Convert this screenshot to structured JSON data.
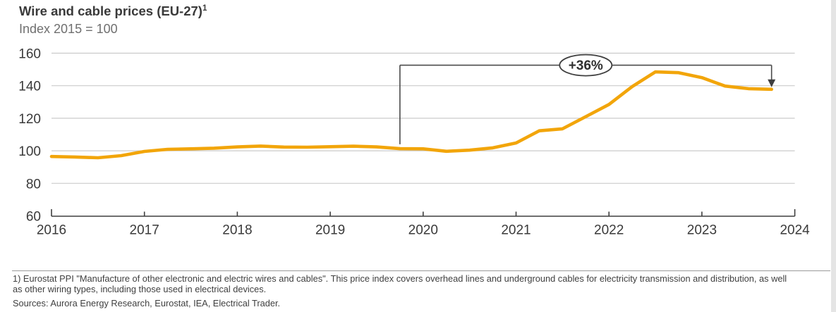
{
  "header": {
    "title": "Wire and cable prices (EU-27)",
    "title_sup": "1",
    "subtitle": "Index 2015 = 100"
  },
  "chart_data": {
    "type": "line",
    "title": "Wire and cable prices (EU-27)",
    "unit": "Index 2015 = 100",
    "xlim": [
      2016,
      2024
    ],
    "ylim": [
      60,
      160
    ],
    "x_ticks": [
      2016,
      2017,
      2018,
      2019,
      2020,
      2021,
      2022,
      2023,
      2024
    ],
    "y_ticks": [
      60,
      80,
      100,
      120,
      140,
      160
    ],
    "grid": "horizontal",
    "line_color": "#F2A50A",
    "series": [
      {
        "name": "Wire and cable price index (EU-27)",
        "x": [
          2016.0,
          2016.25,
          2016.5,
          2016.75,
          2017.0,
          2017.25,
          2017.5,
          2017.75,
          2018.0,
          2018.25,
          2018.5,
          2018.75,
          2019.0,
          2019.25,
          2019.5,
          2019.75,
          2020.0,
          2020.25,
          2020.5,
          2020.75,
          2021.0,
          2021.25,
          2021.5,
          2021.75,
          2022.0,
          2022.25,
          2022.5,
          2022.75,
          2023.0,
          2023.25,
          2023.5,
          2023.75
        ],
        "values": [
          96.5,
          96.2,
          95.7,
          97.0,
          99.6,
          100.9,
          101.2,
          101.6,
          102.4,
          102.9,
          102.3,
          102.2,
          102.5,
          102.8,
          102.4,
          101.3,
          101.2,
          99.7,
          100.4,
          101.8,
          104.8,
          112.3,
          113.5,
          121.0,
          128.5,
          139.5,
          148.5,
          148.0,
          145.0,
          139.8,
          138.2,
          137.8
        ]
      }
    ],
    "annotation": {
      "label": "+36%",
      "from_x": 2019.75,
      "to_x": 2023.75,
      "from_value": 101.3,
      "to_value": 137.8,
      "bracket_value": 152.6,
      "drop_end_value": 104,
      "label_x": 2021.75
    }
  },
  "footer": {
    "footnote_line1": "1) Eurostat PPI \"Manufacture of other electronic and electric wires and cables\". This price index covers overhead lines and underground cables for electricity transmission and distribution, as well",
    "footnote_line2": "as other wiring types, including those used in electrical devices.",
    "sources": "Sources: Aurora Energy Research, Eurostat, IEA, Electrical Trader."
  }
}
